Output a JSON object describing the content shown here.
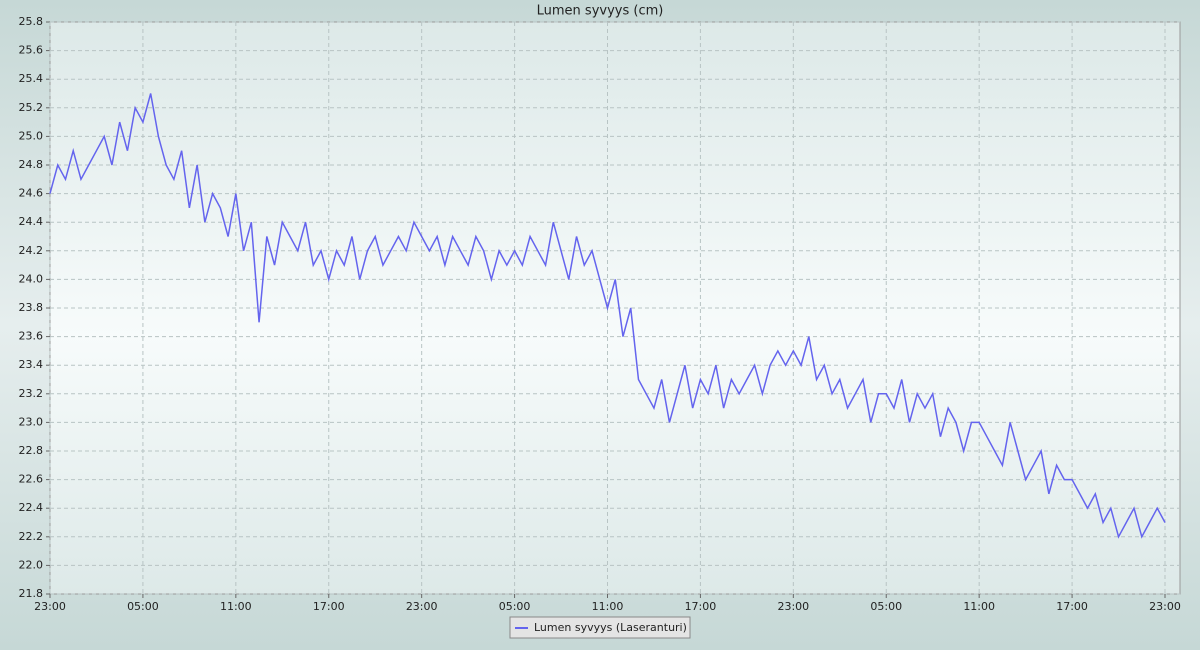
{
  "chart_data": {
    "type": "line",
    "title": "Lumen syvyys (cm)",
    "x": [
      0,
      0.5,
      1,
      1.5,
      2,
      2.5,
      3,
      3.5,
      4,
      4.5,
      5,
      5.5,
      6,
      6.5,
      7,
      7.5,
      8,
      8.5,
      9,
      9.5,
      10,
      10.5,
      11,
      11.5,
      12,
      12.5,
      13,
      13.5,
      14,
      14.5,
      15,
      15.5,
      16,
      16.5,
      17,
      17.5,
      18,
      18.5,
      19,
      19.5,
      20,
      20.5,
      21,
      21.5,
      22,
      22.5,
      23,
      23.5,
      24,
      24.5,
      25,
      25.5,
      26,
      26.5,
      27,
      27.5,
      28,
      28.5,
      29,
      29.5,
      30,
      30.5,
      31,
      31.5,
      32,
      32.5,
      33,
      33.5,
      34,
      34.5,
      35,
      35.5,
      36,
      36.5,
      37,
      37.5,
      38,
      38.5,
      39,
      39.5,
      40,
      40.5,
      41,
      41.5,
      42,
      42.5,
      43,
      43.5,
      44,
      44.5,
      45,
      45.5,
      46,
      46.5,
      47,
      47.5,
      48,
      48.5,
      49,
      49.5,
      50,
      50.5,
      51,
      51.5,
      52,
      52.5,
      53,
      53.5,
      54,
      54.5,
      55,
      55.5,
      56,
      56.5,
      57,
      57.5,
      58,
      58.5,
      59,
      59.5,
      60,
      60.5,
      61,
      61.5,
      62,
      62.5,
      63,
      63.5,
      64,
      64.5,
      65,
      65.5,
      66,
      66.5,
      67,
      67.5,
      68,
      68.5,
      69,
      69.5,
      70,
      70.5,
      71,
      71.5,
      72
    ],
    "series": [
      {
        "name": "Lumen syvyys (Laseranturi)",
        "color": "#6464ee",
        "values": [
          24.6,
          24.8,
          24.7,
          24.9,
          24.7,
          24.8,
          24.9,
          25.0,
          24.8,
          25.1,
          24.9,
          25.2,
          25.1,
          25.3,
          25.0,
          24.8,
          24.7,
          24.9,
          24.5,
          24.8,
          24.4,
          24.6,
          24.5,
          24.3,
          24.6,
          24.2,
          24.4,
          23.7,
          24.3,
          24.1,
          24.4,
          24.3,
          24.2,
          24.4,
          24.1,
          24.2,
          24.0,
          24.2,
          24.1,
          24.3,
          24.0,
          24.2,
          24.3,
          24.1,
          24.2,
          24.3,
          24.2,
          24.4,
          24.3,
          24.2,
          24.3,
          24.1,
          24.3,
          24.2,
          24.1,
          24.3,
          24.2,
          24.0,
          24.2,
          24.1,
          24.2,
          24.1,
          24.3,
          24.2,
          24.1,
          24.4,
          24.2,
          24.0,
          24.3,
          24.1,
          24.2,
          24.0,
          23.8,
          24.0,
          23.6,
          23.8,
          23.3,
          23.2,
          23.1,
          23.3,
          23.0,
          23.2,
          23.4,
          23.1,
          23.3,
          23.2,
          23.4,
          23.1,
          23.3,
          23.2,
          23.3,
          23.4,
          23.2,
          23.4,
          23.5,
          23.4,
          23.5,
          23.4,
          23.6,
          23.3,
          23.4,
          23.2,
          23.3,
          23.1,
          23.2,
          23.3,
          23.0,
          23.2,
          23.2,
          23.1,
          23.3,
          23.0,
          23.2,
          23.1,
          23.2,
          22.9,
          23.1,
          23.0,
          22.8,
          23.0,
          23.0,
          22.9,
          22.8,
          22.7,
          23.0,
          22.8,
          22.6,
          22.7,
          22.8,
          22.5,
          22.7,
          22.6,
          22.6,
          22.5,
          22.4,
          22.5,
          22.3,
          22.4,
          22.2,
          22.3,
          22.4,
          22.2,
          22.3,
          22.4,
          22.3
        ]
      }
    ],
    "xlim": [
      0,
      72
    ],
    "xticks": [
      {
        "value": 0,
        "label": "23:00"
      },
      {
        "value": 6,
        "label": "05:00"
      },
      {
        "value": 12,
        "label": "11:00"
      },
      {
        "value": 18,
        "label": "17:00"
      },
      {
        "value": 24,
        "label": "23:00"
      },
      {
        "value": 30,
        "label": "05:00"
      },
      {
        "value": 36,
        "label": "11:00"
      },
      {
        "value": 42,
        "label": "17:00"
      },
      {
        "value": 48,
        "label": "23:00"
      },
      {
        "value": 54,
        "label": "05:00"
      },
      {
        "value": 60,
        "label": "11:00"
      },
      {
        "value": 66,
        "label": "17:00"
      },
      {
        "value": 72,
        "label": "23:00"
      }
    ],
    "ylim": [
      21.8,
      25.8
    ],
    "yticks": [
      21.8,
      {
        "value": 22,
        "label": "22.0"
      },
      22.2,
      22.4,
      22.6,
      22.8,
      {
        "value": 23,
        "label": "23.0"
      },
      23.2,
      23.4,
      23.6,
      23.8,
      {
        "value": 24,
        "label": "24.0"
      },
      24.2,
      24.4,
      24.6,
      24.8,
      {
        "value": 25,
        "label": "25.0"
      },
      25.2,
      25.4,
      25.6,
      25.8
    ],
    "grid": true
  }
}
